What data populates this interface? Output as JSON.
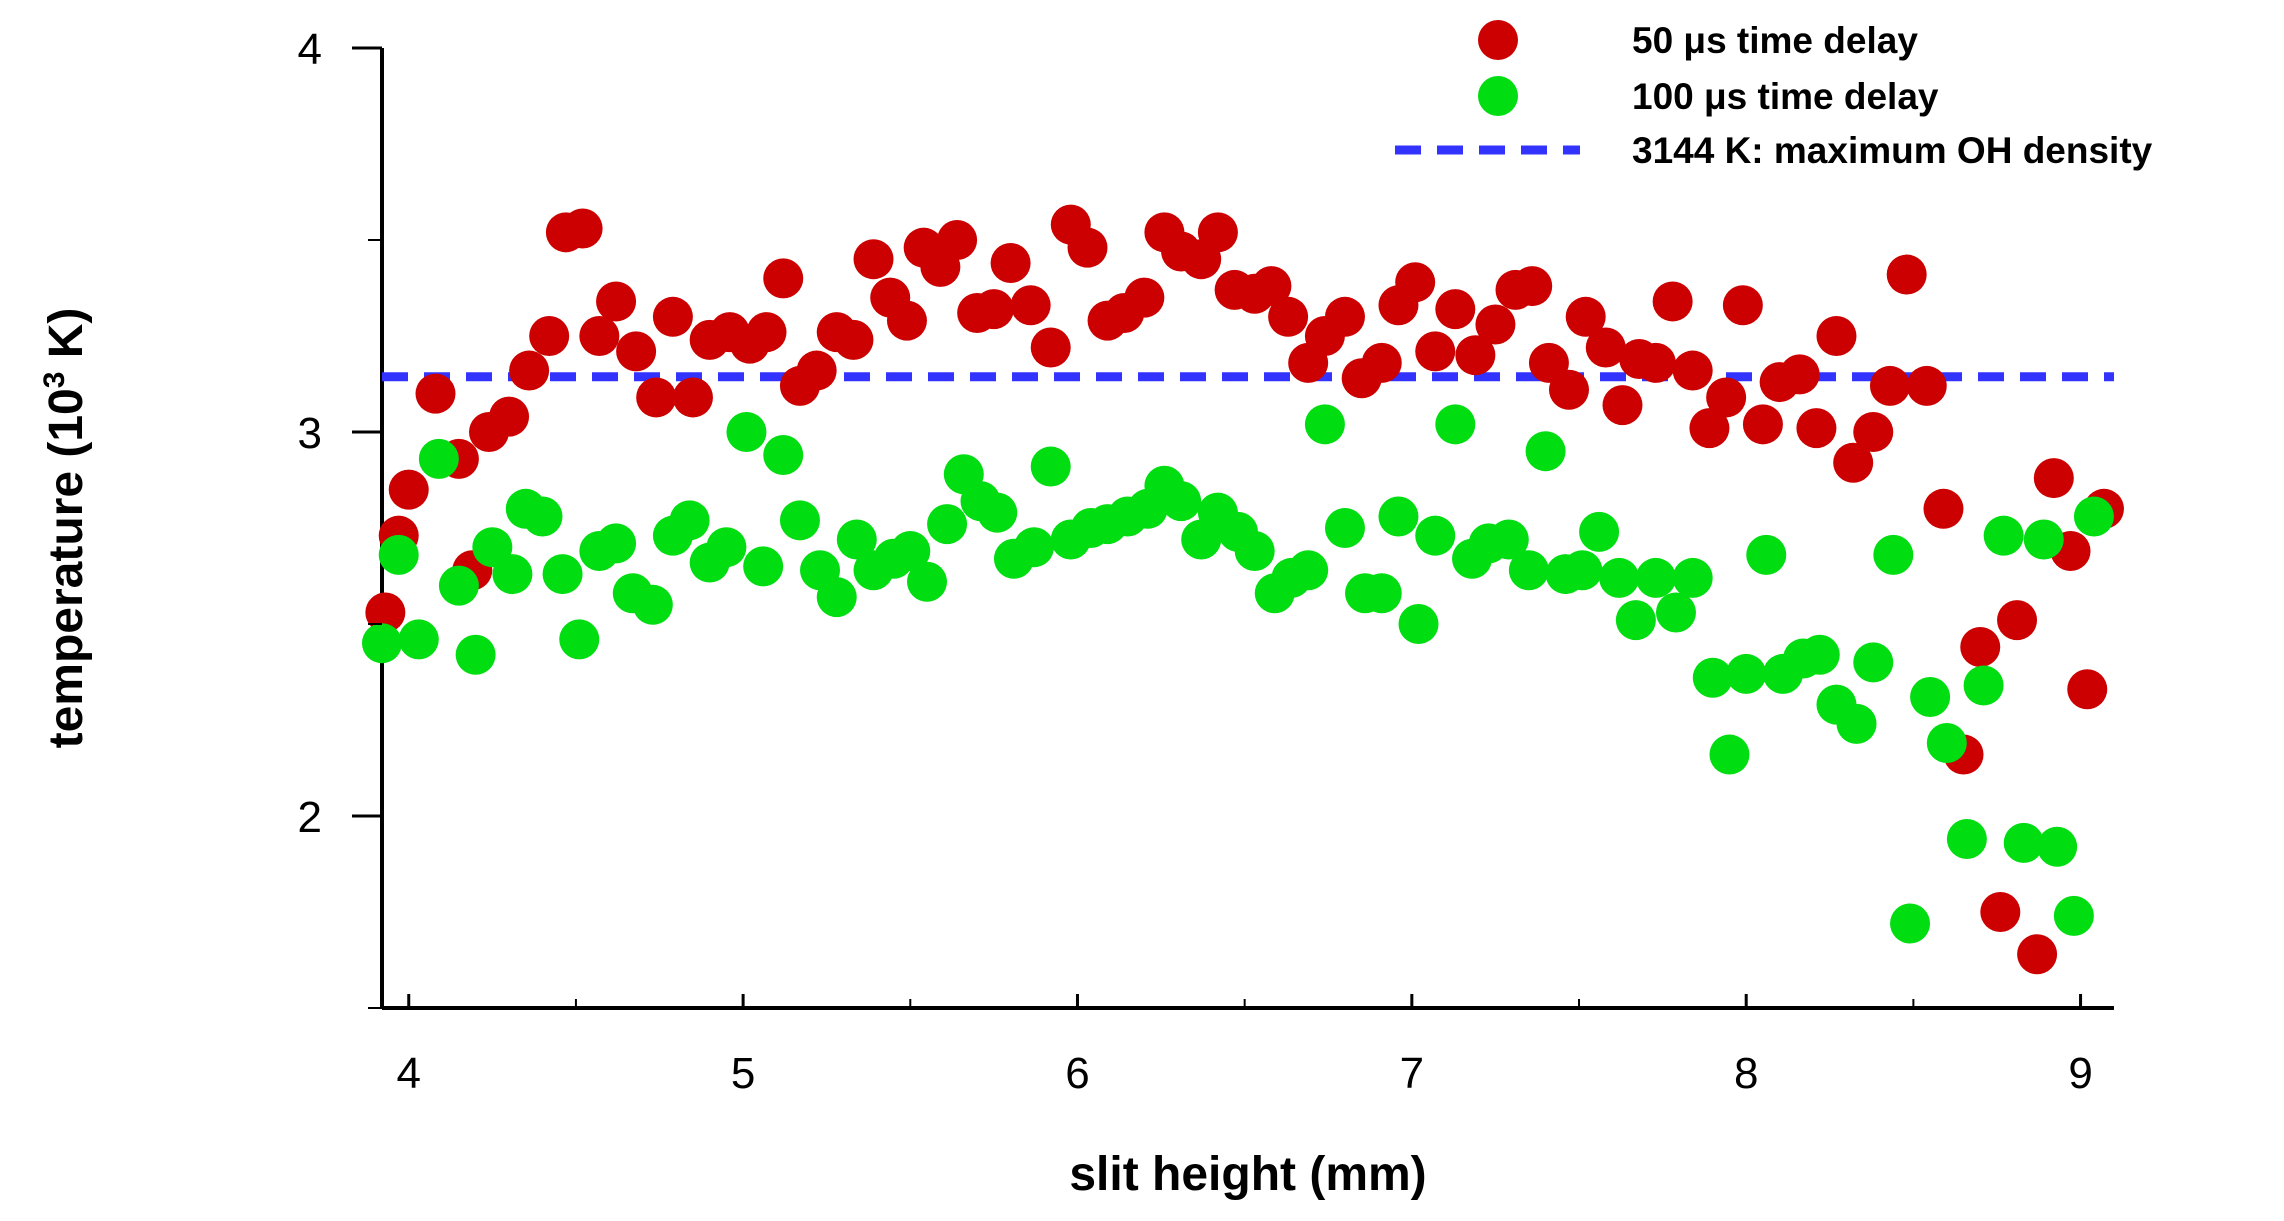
{
  "chart_data": {
    "type": "scatter",
    "xlabel": "slit height (mm)",
    "ylabel": "temperature (10",
    "ylabel_sup": "3",
    "ylabel_tail": " K)",
    "xlim": [
      3.92,
      9.1
    ],
    "ylim": [
      1.5,
      4.0
    ],
    "x_ticks": [
      "4",
      "5",
      "6",
      "7",
      "8",
      "9"
    ],
    "y_ticks": [
      "2",
      "3",
      "4"
    ],
    "grid": false,
    "legend_position": "top-right",
    "series": [
      {
        "name": "50 μs time delay",
        "color": "#cc0000",
        "points": [
          [
            3.93,
            2.53
          ],
          [
            3.97,
            2.73
          ],
          [
            4.0,
            2.85
          ],
          [
            4.08,
            3.1
          ],
          [
            4.15,
            2.93
          ],
          [
            4.19,
            2.64
          ],
          [
            4.24,
            3.0
          ],
          [
            4.3,
            3.04
          ],
          [
            4.36,
            3.16
          ],
          [
            4.42,
            3.25
          ],
          [
            4.47,
            3.52
          ],
          [
            4.52,
            3.53
          ],
          [
            4.57,
            3.25
          ],
          [
            4.62,
            3.34
          ],
          [
            4.68,
            3.21
          ],
          [
            4.74,
            3.09
          ],
          [
            4.79,
            3.3
          ],
          [
            4.85,
            3.09
          ],
          [
            4.9,
            3.24
          ],
          [
            4.96,
            3.26
          ],
          [
            5.02,
            3.23
          ],
          [
            5.07,
            3.26
          ],
          [
            5.12,
            3.4
          ],
          [
            5.17,
            3.12
          ],
          [
            5.22,
            3.16
          ],
          [
            5.28,
            3.26
          ],
          [
            5.33,
            3.24
          ],
          [
            5.39,
            3.45
          ],
          [
            5.44,
            3.35
          ],
          [
            5.49,
            3.29
          ],
          [
            5.54,
            3.48
          ],
          [
            5.59,
            3.43
          ],
          [
            5.64,
            3.5
          ],
          [
            5.7,
            3.31
          ],
          [
            5.75,
            3.32
          ],
          [
            5.8,
            3.44
          ],
          [
            5.86,
            3.33
          ],
          [
            5.92,
            3.22
          ],
          [
            5.98,
            3.54
          ],
          [
            6.03,
            3.48
          ],
          [
            6.09,
            3.29
          ],
          [
            6.14,
            3.31
          ],
          [
            6.2,
            3.35
          ],
          [
            6.26,
            3.52
          ],
          [
            6.31,
            3.47
          ],
          [
            6.37,
            3.45
          ],
          [
            6.42,
            3.52
          ],
          [
            6.47,
            3.37
          ],
          [
            6.53,
            3.36
          ],
          [
            6.58,
            3.38
          ],
          [
            6.63,
            3.3
          ],
          [
            6.69,
            3.18
          ],
          [
            6.74,
            3.25
          ],
          [
            6.8,
            3.3
          ],
          [
            6.85,
            3.14
          ],
          [
            6.91,
            3.18
          ],
          [
            6.96,
            3.33
          ],
          [
            7.01,
            3.39
          ],
          [
            7.07,
            3.21
          ],
          [
            7.13,
            3.32
          ],
          [
            7.19,
            3.2
          ],
          [
            7.25,
            3.28
          ],
          [
            7.31,
            3.37
          ],
          [
            7.36,
            3.38
          ],
          [
            7.41,
            3.18
          ],
          [
            7.47,
            3.11
          ],
          [
            7.52,
            3.3
          ],
          [
            7.58,
            3.22
          ],
          [
            7.63,
            3.07
          ],
          [
            7.68,
            3.19
          ],
          [
            7.73,
            3.18
          ],
          [
            7.78,
            3.34
          ],
          [
            7.84,
            3.16
          ],
          [
            7.89,
            3.01
          ],
          [
            7.94,
            3.09
          ],
          [
            7.99,
            3.33
          ],
          [
            8.05,
            3.02
          ],
          [
            8.1,
            3.13
          ],
          [
            8.16,
            3.15
          ],
          [
            8.21,
            3.01
          ],
          [
            8.27,
            3.25
          ],
          [
            8.32,
            2.92
          ],
          [
            8.38,
            3.0
          ],
          [
            8.43,
            3.12
          ],
          [
            8.48,
            3.41
          ],
          [
            8.54,
            3.12
          ],
          [
            8.59,
            2.8
          ],
          [
            8.65,
            2.16
          ],
          [
            8.7,
            2.44
          ],
          [
            8.76,
            1.75
          ],
          [
            8.81,
            2.51
          ],
          [
            8.87,
            1.64
          ],
          [
            8.92,
            2.88
          ],
          [
            8.97,
            2.69
          ],
          [
            9.02,
            2.33
          ],
          [
            9.07,
            2.8
          ]
        ]
      },
      {
        "name": "100 μs time delay",
        "color": "#00dd11",
        "points": [
          [
            3.92,
            2.45
          ],
          [
            3.97,
            2.68
          ],
          [
            4.03,
            2.46
          ],
          [
            4.09,
            2.93
          ],
          [
            4.15,
            2.6
          ],
          [
            4.2,
            2.42
          ],
          [
            4.25,
            2.7
          ],
          [
            4.31,
            2.63
          ],
          [
            4.35,
            2.8
          ],
          [
            4.4,
            2.78
          ],
          [
            4.46,
            2.63
          ],
          [
            4.51,
            2.46
          ],
          [
            4.57,
            2.69
          ],
          [
            4.62,
            2.71
          ],
          [
            4.67,
            2.58
          ],
          [
            4.73,
            2.55
          ],
          [
            4.79,
            2.73
          ],
          [
            4.84,
            2.77
          ],
          [
            4.9,
            2.66
          ],
          [
            4.95,
            2.7
          ],
          [
            5.01,
            3.0
          ],
          [
            5.06,
            2.65
          ],
          [
            5.12,
            2.94
          ],
          [
            5.17,
            2.77
          ],
          [
            5.23,
            2.64
          ],
          [
            5.28,
            2.57
          ],
          [
            5.34,
            2.72
          ],
          [
            5.39,
            2.64
          ],
          [
            5.45,
            2.67
          ],
          [
            5.5,
            2.69
          ],
          [
            5.55,
            2.61
          ],
          [
            5.61,
            2.76
          ],
          [
            5.66,
            2.89
          ],
          [
            5.71,
            2.82
          ],
          [
            5.76,
            2.79
          ],
          [
            5.81,
            2.67
          ],
          [
            5.87,
            2.7
          ],
          [
            5.92,
            2.91
          ],
          [
            5.98,
            2.72
          ],
          [
            6.04,
            2.75
          ],
          [
            6.09,
            2.76
          ],
          [
            6.15,
            2.78
          ],
          [
            6.21,
            2.8
          ],
          [
            6.26,
            2.86
          ],
          [
            6.31,
            2.82
          ],
          [
            6.37,
            2.72
          ],
          [
            6.42,
            2.79
          ],
          [
            6.48,
            2.74
          ],
          [
            6.53,
            2.69
          ],
          [
            6.59,
            2.58
          ],
          [
            6.64,
            2.62
          ],
          [
            6.69,
            2.64
          ],
          [
            6.74,
            3.02
          ],
          [
            6.8,
            2.75
          ],
          [
            6.86,
            2.58
          ],
          [
            6.91,
            2.58
          ],
          [
            6.96,
            2.78
          ],
          [
            7.02,
            2.5
          ],
          [
            7.07,
            2.73
          ],
          [
            7.13,
            3.02
          ],
          [
            7.18,
            2.67
          ],
          [
            7.23,
            2.71
          ],
          [
            7.29,
            2.72
          ],
          [
            7.35,
            2.64
          ],
          [
            7.4,
            2.95
          ],
          [
            7.46,
            2.63
          ],
          [
            7.51,
            2.64
          ],
          [
            7.56,
            2.74
          ],
          [
            7.62,
            2.62
          ],
          [
            7.67,
            2.51
          ],
          [
            7.73,
            2.62
          ],
          [
            7.79,
            2.53
          ],
          [
            7.84,
            2.62
          ],
          [
            7.9,
            2.36
          ],
          [
            7.95,
            2.16
          ],
          [
            8.0,
            2.37
          ],
          [
            8.06,
            2.68
          ],
          [
            8.11,
            2.37
          ],
          [
            8.17,
            2.41
          ],
          [
            8.22,
            2.42
          ],
          [
            8.27,
            2.29
          ],
          [
            8.33,
            2.24
          ],
          [
            8.38,
            2.4
          ],
          [
            8.44,
            2.68
          ],
          [
            8.49,
            1.72
          ],
          [
            8.55,
            2.31
          ],
          [
            8.6,
            2.19
          ],
          [
            8.66,
            1.94
          ],
          [
            8.71,
            2.34
          ],
          [
            8.77,
            2.73
          ],
          [
            8.83,
            1.93
          ],
          [
            8.89,
            2.72
          ],
          [
            8.93,
            1.92
          ],
          [
            8.98,
            1.74
          ],
          [
            9.04,
            2.78
          ]
        ]
      }
    ],
    "reference_line": {
      "name": "3144 K: maximum OH density",
      "y": 3.144,
      "color": "#3333ff",
      "style": "dashed"
    }
  }
}
